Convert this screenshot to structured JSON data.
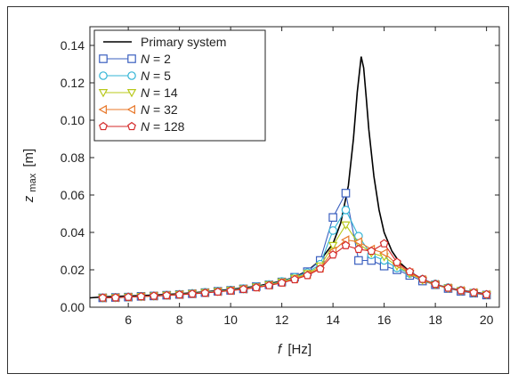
{
  "chart_data": {
    "type": "line",
    "xlabel": {
      "var": "f",
      "unit": "[Hz]"
    },
    "ylabel": {
      "var": "z",
      "sub": "max",
      "unit": "[m]"
    },
    "xlim": [
      4.5,
      20.5
    ],
    "ylim": [
      0,
      0.15
    ],
    "xticks": [
      6,
      8,
      10,
      12,
      14,
      16,
      18,
      20
    ],
    "xtick_labels": [
      "6",
      "8",
      "10",
      "12",
      "14",
      "16",
      "18",
      "20"
    ],
    "yticks": [
      0,
      0.02,
      0.04,
      0.06,
      0.08,
      0.1,
      0.12,
      0.14
    ],
    "ytick_labels": [
      "0.00",
      "0.02",
      "0.04",
      "0.06",
      "0.08",
      "0.10",
      "0.12",
      "0.14"
    ],
    "legend": {
      "position": "top-left"
    },
    "primary": {
      "name": "Primary system",
      "color": "#000000",
      "x": [
        4.5,
        5,
        6,
        7,
        8,
        9,
        10,
        11,
        12,
        12.5,
        13,
        13.5,
        14,
        14.3,
        14.6,
        14.8,
        14.95,
        15.1,
        15.2,
        15.3,
        15.4,
        15.6,
        15.8,
        16,
        16.3,
        16.6,
        17,
        17.5,
        18,
        19,
        20
      ],
      "y": [
        0.005,
        0.0055,
        0.006,
        0.0065,
        0.0072,
        0.0082,
        0.0095,
        0.0112,
        0.014,
        0.016,
        0.0195,
        0.025,
        0.034,
        0.045,
        0.065,
        0.09,
        0.115,
        0.134,
        0.128,
        0.112,
        0.095,
        0.07,
        0.052,
        0.04,
        0.03,
        0.024,
        0.019,
        0.0148,
        0.012,
        0.009,
        0.007
      ]
    },
    "series": [
      {
        "name": "N = 2",
        "n": "2",
        "marker": "square",
        "color": "#3a5fbf",
        "x": [
          5,
          5.5,
          6,
          6.5,
          7,
          7.5,
          8,
          8.5,
          9,
          9.5,
          10,
          10.5,
          11,
          11.5,
          12,
          12.5,
          13,
          13.5,
          14,
          14.5,
          15,
          15.5,
          16,
          16.5,
          17,
          17.5,
          18,
          18.5,
          19,
          19.5,
          20
        ],
        "y": [
          0.005,
          0.0052,
          0.0054,
          0.0058,
          0.006,
          0.0064,
          0.0068,
          0.0072,
          0.0078,
          0.0085,
          0.009,
          0.0098,
          0.011,
          0.012,
          0.0135,
          0.016,
          0.019,
          0.025,
          0.048,
          0.061,
          0.025,
          0.025,
          0.022,
          0.02,
          0.017,
          0.014,
          0.012,
          0.01,
          0.0085,
          0.0075,
          0.0065
        ]
      },
      {
        "name": "N = 5",
        "n": "5",
        "marker": "circle",
        "color": "#33b5d6",
        "x": [
          5,
          5.5,
          6,
          6.5,
          7,
          7.5,
          8,
          8.5,
          9,
          9.5,
          10,
          10.5,
          11,
          11.5,
          12,
          12.5,
          13,
          13.5,
          14,
          14.5,
          15,
          15.5,
          16,
          16.5,
          17,
          17.5,
          18,
          18.5,
          19,
          19.5,
          20
        ],
        "y": [
          0.005,
          0.0052,
          0.0055,
          0.0058,
          0.0061,
          0.0065,
          0.0069,
          0.0074,
          0.008,
          0.0086,
          0.0092,
          0.01,
          0.011,
          0.0122,
          0.0138,
          0.016,
          0.0185,
          0.023,
          0.041,
          0.052,
          0.038,
          0.028,
          0.025,
          0.021,
          0.018,
          0.015,
          0.0125,
          0.0105,
          0.009,
          0.0078,
          0.0068
        ]
      },
      {
        "name": "N = 14",
        "n": "14",
        "marker": "triangle-down",
        "color": "#b8c81a",
        "x": [
          5,
          5.5,
          6,
          6.5,
          7,
          7.5,
          8,
          8.5,
          9,
          9.5,
          10,
          10.5,
          11,
          11.5,
          12,
          12.5,
          13,
          13.5,
          14,
          14.5,
          15,
          15.5,
          16,
          16.5,
          17,
          17.5,
          18,
          18.5,
          19,
          19.5,
          20
        ],
        "y": [
          0.005,
          0.0051,
          0.0054,
          0.0057,
          0.006,
          0.0064,
          0.0068,
          0.0073,
          0.0078,
          0.0084,
          0.009,
          0.0098,
          0.0108,
          0.012,
          0.0135,
          0.0155,
          0.018,
          0.022,
          0.033,
          0.044,
          0.034,
          0.029,
          0.027,
          0.022,
          0.018,
          0.0145,
          0.012,
          0.0102,
          0.0088,
          0.0077,
          0.0067
        ]
      },
      {
        "name": "N = 32",
        "n": "32",
        "marker": "triangle-left",
        "color": "#e8782a",
        "x": [
          5,
          5.5,
          6,
          6.5,
          7,
          7.5,
          8,
          8.5,
          9,
          9.5,
          10,
          10.5,
          11,
          11.5,
          12,
          12.5,
          13,
          13.5,
          14,
          14.5,
          15,
          15.5,
          16,
          16.5,
          17,
          17.5,
          18,
          18.5,
          19,
          19.5,
          20
        ],
        "y": [
          0.005,
          0.0051,
          0.0054,
          0.0057,
          0.006,
          0.0063,
          0.0067,
          0.0072,
          0.0077,
          0.0083,
          0.0089,
          0.0097,
          0.0106,
          0.0118,
          0.0132,
          0.0152,
          0.0175,
          0.021,
          0.03,
          0.036,
          0.035,
          0.031,
          0.029,
          0.023,
          0.0185,
          0.0148,
          0.0122,
          0.0103,
          0.0089,
          0.0078,
          0.0068
        ]
      },
      {
        "name": "N = 128",
        "n": "128",
        "marker": "pentagon",
        "color": "#d42a2a",
        "x": [
          5,
          5.5,
          6,
          6.5,
          7,
          7.5,
          8,
          8.5,
          9,
          9.5,
          10,
          10.5,
          11,
          11.5,
          12,
          12.5,
          13,
          13.5,
          14,
          14.5,
          15,
          15.5,
          16,
          16.5,
          17,
          17.5,
          18,
          18.5,
          19,
          19.5,
          20
        ],
        "y": [
          0.005,
          0.0051,
          0.0054,
          0.0057,
          0.006,
          0.0063,
          0.0067,
          0.0071,
          0.0076,
          0.0082,
          0.0088,
          0.0096,
          0.0105,
          0.0116,
          0.013,
          0.0148,
          0.017,
          0.0205,
          0.028,
          0.033,
          0.031,
          0.03,
          0.034,
          0.024,
          0.019,
          0.015,
          0.0123,
          0.0103,
          0.0089,
          0.0078,
          0.0068
        ]
      }
    ]
  }
}
